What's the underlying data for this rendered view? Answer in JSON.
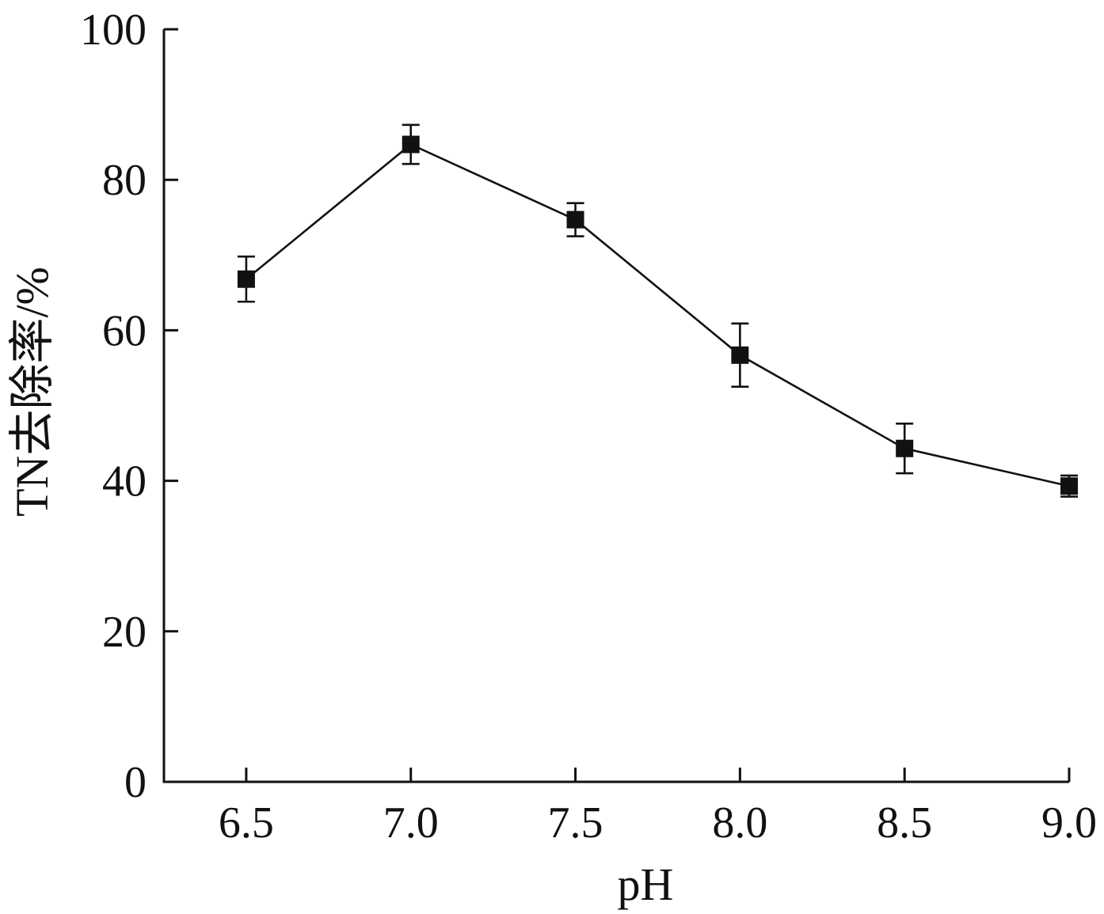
{
  "chart_data": {
    "type": "line",
    "title": "",
    "xlabel": "pH",
    "ylabel": "TN去除率/%",
    "x": [
      6.5,
      7.0,
      7.5,
      8.0,
      8.5,
      9.0
    ],
    "x_tick_labels": [
      "6.5",
      "7.0",
      "7.5",
      "8.0",
      "8.5",
      "9.0"
    ],
    "xlim": [
      6.25,
      9.0
    ],
    "ylim": [
      0,
      100
    ],
    "y_ticks": [
      0,
      20,
      40,
      60,
      80,
      100
    ],
    "y_tick_labels": [
      "0",
      "20",
      "40",
      "60",
      "80",
      "100"
    ],
    "grid": false,
    "legend": "none",
    "series": [
      {
        "marker": "square",
        "color": "#111111",
        "values": [
          66.8,
          84.7,
          74.7,
          56.7,
          44.3,
          39.3
        ],
        "error": [
          3.0,
          2.6,
          2.2,
          4.2,
          3.3,
          1.4
        ]
      }
    ]
  }
}
